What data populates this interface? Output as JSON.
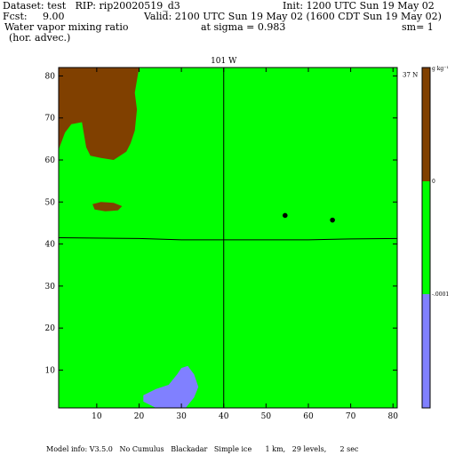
{
  "header": {
    "dataset": "Dataset: test   RIP: rip20020519_d3",
    "init": "Init: 1200 UTC Sun 19 May 02",
    "fcst": "Fcst:     9.00",
    "valid": "Valid: 2100 UTC Sun 19 May 02 (1600 CDT Sun 19 May 02)",
    "field": "Water vapor mixing ratio",
    "sigma": "at sigma = 0.983",
    "sm": "sm= 1",
    "advec": "(hor. advec.)"
  },
  "footer": "Model info: V3.5.0   No Cumulus   Blackadar   Simple ice      1 km,   29 levels,      2 sec",
  "chart_data": {
    "type": "heatmap",
    "xlim": [
      1,
      81
    ],
    "ylim": [
      1,
      82
    ],
    "x_ticks": [
      10,
      20,
      30,
      40,
      50,
      60,
      70,
      80
    ],
    "y_ticks": [
      10,
      20,
      30,
      40,
      50,
      60,
      70,
      80
    ],
    "top_label": "101 W",
    "right_label": "37 N",
    "meridian_x": 40,
    "parallel": [
      [
        1,
        41.5
      ],
      [
        20,
        41.3
      ],
      [
        30,
        41.0
      ],
      [
        40,
        41.0
      ],
      [
        50,
        41.0
      ],
      [
        60,
        41.0
      ],
      [
        70,
        41.2
      ],
      [
        81,
        41.3
      ]
    ],
    "colorbar": {
      "unit": "g kg⁻¹",
      "segments": [
        {
          "from": "",
          "to": "0",
          "color": "#804000"
        },
        {
          "from": "0",
          "to": "-.0001",
          "color": "#00ff00"
        },
        {
          "from": "-.0001",
          "to": "",
          "color": "#8080ff"
        }
      ],
      "labels": [
        "0",
        "-.0001"
      ]
    },
    "background_color": "#00ff00",
    "regions": [
      {
        "color": "#804000",
        "points": [
          [
            1,
            82
          ],
          [
            20,
            82
          ],
          [
            19.5,
            79
          ],
          [
            19,
            76
          ],
          [
            19.5,
            72
          ],
          [
            19,
            67
          ],
          [
            18,
            64
          ],
          [
            17,
            62
          ],
          [
            14,
            60
          ],
          [
            11,
            60.5
          ],
          [
            8.5,
            61
          ],
          [
            7.5,
            63
          ],
          [
            7,
            66
          ],
          [
            6.5,
            69
          ],
          [
            4,
            68.5
          ],
          [
            2.5,
            66.5
          ],
          [
            1,
            62.5
          ]
        ]
      },
      {
        "color": "#804000",
        "points": [
          [
            9,
            49.5
          ],
          [
            11,
            50
          ],
          [
            14,
            49.8
          ],
          [
            16,
            49
          ],
          [
            15,
            48
          ],
          [
            12,
            47.8
          ],
          [
            9.5,
            48.2
          ]
        ]
      },
      {
        "color": "#8080ff",
        "points": [
          [
            21,
            4
          ],
          [
            24,
            5.5
          ],
          [
            27,
            6.5
          ],
          [
            29,
            9
          ],
          [
            30,
            10.5
          ],
          [
            31.5,
            11
          ],
          [
            33,
            9
          ],
          [
            34,
            6
          ],
          [
            33,
            3.5
          ],
          [
            31,
            1
          ],
          [
            24,
            1
          ],
          [
            21,
            2.5
          ]
        ]
      }
    ],
    "dots": [
      [
        54.5,
        46.8
      ],
      [
        65.7,
        45.7
      ]
    ]
  }
}
